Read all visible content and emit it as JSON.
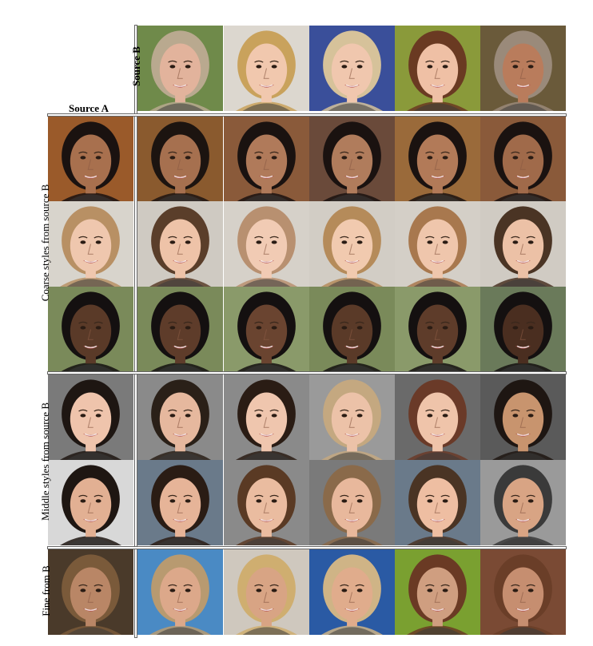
{
  "labels": {
    "source_a": "Source A",
    "source_b": "Source B",
    "coarse": "Coarse styles from source B",
    "middle": "Middle styles from source B",
    "fine": "Fine from B"
  },
  "source_b": [
    {
      "icon": "face-bald-man-sunglasses",
      "bg": "#6f8a4a",
      "skin": "#e2b39c",
      "hair": "#b9a98f"
    },
    {
      "icon": "face-blonde-woman",
      "bg": "#dcd7cf",
      "skin": "#f1c8ae",
      "hair": "#c9a25c"
    },
    {
      "icon": "face-blond-boy",
      "bg": "#3a4f9a",
      "skin": "#f0c7ae",
      "hair": "#d6c29a"
    },
    {
      "icon": "face-brunette-woman",
      "bg": "#8a9a3a",
      "skin": "#efc0a5",
      "hair": "#6a3a22"
    },
    {
      "icon": "face-bald-older-man",
      "bg": "#6a5a3a",
      "skin": "#b97c5c",
      "hair": "#9a8a7a"
    }
  ],
  "rows": [
    {
      "group": "coarse",
      "source_a": {
        "icon": "face-curly-hair-woman",
        "bg": "#9a5a2a",
        "skin": "#a8704e",
        "hair": "#1a1210"
      },
      "mix": [
        {
          "icon": "face-man-glasses-beard",
          "bg": "#8a5a2e",
          "skin": "#a6704f",
          "hair": "#1c1410"
        },
        {
          "icon": "face-woman-dark-hair",
          "bg": "#8a5a3a",
          "skin": "#b07a5a",
          "hair": "#1a1210"
        },
        {
          "icon": "face-girl-dark-hair",
          "bg": "#6a4a3a",
          "skin": "#b07c5c",
          "hair": "#1a1210"
        },
        {
          "icon": "face-woman-bangs",
          "bg": "#9a6a3a",
          "skin": "#b27a58",
          "hair": "#1a1210"
        },
        {
          "icon": "face-man-beard",
          "bg": "#8a5a3a",
          "skin": "#a06a4a",
          "hair": "#1a1210"
        }
      ]
    },
    {
      "group": "coarse",
      "source_a": {
        "icon": "face-blonde-woman-smiling",
        "bg": "#d8d4cc",
        "skin": "#efc7ae",
        "hair": "#b89064"
      },
      "mix": [
        {
          "icon": "face-man-glasses",
          "bg": "#cfcac2",
          "skin": "#eec3a8",
          "hair": "#5a3e2a"
        },
        {
          "icon": "face-woman-light-hair",
          "bg": "#d6d1c9",
          "skin": "#f1cbb4",
          "hair": "#b89070"
        },
        {
          "icon": "face-toddler-boy",
          "bg": "#d2cdc5",
          "skin": "#f1caaf",
          "hair": "#b58b5a"
        },
        {
          "icon": "face-woman-smiling-bangs",
          "bg": "#d4cfc7",
          "skin": "#efc6ac",
          "hair": "#a8784e"
        },
        {
          "icon": "face-man-short-hair",
          "bg": "#d0cbc3",
          "skin": "#ecc1a6",
          "hair": "#4a3424"
        }
      ]
    },
    {
      "group": "coarse",
      "source_a": {
        "icon": "face-woman-glasses",
        "bg": "#7a8a5a",
        "skin": "#5a3a28",
        "hair": "#141010"
      },
      "mix": [
        {
          "icon": "face-man-glasses-dark",
          "bg": "#7a8a5a",
          "skin": "#5e3c2a",
          "hair": "#141010"
        },
        {
          "icon": "face-woman-long-dark-hair",
          "bg": "#8a9a6a",
          "skin": "#6a4430",
          "hair": "#141010"
        },
        {
          "icon": "face-boy-dark",
          "bg": "#7a8a5a",
          "skin": "#5a3a28",
          "hair": "#141010"
        },
        {
          "icon": "face-woman-smiling-dark",
          "bg": "#8a9a6a",
          "skin": "#5e3c2a",
          "hair": "#141010"
        },
        {
          "icon": "face-man-smiling-dark",
          "bg": "#6a7a5a",
          "skin": "#4a2e20",
          "hair": "#141010"
        }
      ]
    },
    {
      "group": "middle",
      "source_a": {
        "icon": "face-asian-woman",
        "bg": "#7a7a7a",
        "skin": "#efc4ac",
        "hair": "#1e1612"
      },
      "mix": [
        {
          "icon": "face-woman-updo",
          "bg": "#8a8a8a",
          "skin": "#e6b89e",
          "hair": "#2a2018"
        },
        {
          "icon": "face-young-woman",
          "bg": "#8a8a8a",
          "skin": "#efc6ae",
          "hair": "#2a1c14"
        },
        {
          "icon": "face-woman-light-hair-2",
          "bg": "#9a9a9a",
          "skin": "#ecc2a8",
          "hair": "#c4a880"
        },
        {
          "icon": "face-woman-brown-hair",
          "bg": "#6a6a6a",
          "skin": "#efc4aa",
          "hair": "#6a3a28"
        },
        {
          "icon": "face-woman-curly-dark",
          "bg": "#5a5a5a",
          "skin": "#c8946e",
          "hair": "#1e1612"
        }
      ]
    },
    {
      "group": "middle",
      "source_a": {
        "icon": "face-man-curly-glasses",
        "bg": "#d8d8d8",
        "skin": "#e2b093",
        "hair": "#1e1612"
      },
      "mix": [
        {
          "icon": "face-man-glasses-2",
          "bg": "#6a7a8a",
          "skin": "#e6b498",
          "hair": "#2a1c14"
        },
        {
          "icon": "face-young-man-glasses",
          "bg": "#8a8a8a",
          "skin": "#eabca0",
          "hair": "#5a3a24"
        },
        {
          "icon": "face-man-thin-glasses",
          "bg": "#7a7a7a",
          "skin": "#e8b89c",
          "hair": "#8a6a4a"
        },
        {
          "icon": "face-man-smiling-glasses",
          "bg": "#6a7a8a",
          "skin": "#eebea2",
          "hair": "#4a3424"
        },
        {
          "icon": "face-older-man-glasses",
          "bg": "#9a9a9a",
          "skin": "#d8a484",
          "hair": "#3a3a3a"
        }
      ]
    },
    {
      "group": "fine",
      "source_a": {
        "icon": "face-woman-long-hair",
        "bg": "#4a3a2a",
        "skin": "#b98666",
        "hair": "#7a5a3a"
      },
      "mix": [
        {
          "icon": "face-woman-fine-1",
          "bg": "#4a8ac4",
          "skin": "#dca88a",
          "hair": "#b89a70"
        },
        {
          "icon": "face-woman-fine-2",
          "bg": "#cfc8be",
          "skin": "#d8a484",
          "hair": "#cfae70"
        },
        {
          "icon": "face-woman-fine-3",
          "bg": "#2a5aa4",
          "skin": "#e0ac8c",
          "hair": "#cfb486"
        },
        {
          "icon": "face-woman-fine-4",
          "bg": "#7aa030",
          "skin": "#cf9e80",
          "hair": "#6a3a24"
        },
        {
          "icon": "face-woman-fine-5",
          "bg": "#7a4a34",
          "skin": "#c68e70",
          "hair": "#6a3e28"
        }
      ]
    }
  ]
}
